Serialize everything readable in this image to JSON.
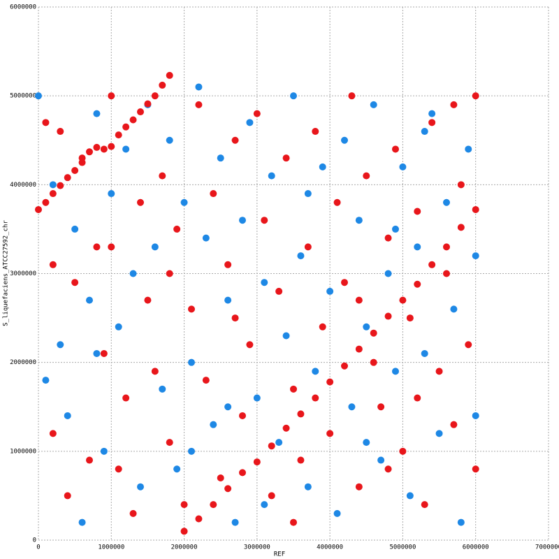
{
  "chart_data": {
    "type": "scatter",
    "xlabel": "REF",
    "ylabel": "S_liquefaciens_ATCC27592_chr",
    "xlim": [
      0,
      7000000
    ],
    "xticks": [
      0,
      1000000,
      2000000,
      3000000,
      4000000,
      5000000,
      6000000,
      7000000
    ],
    "ylim": [
      0,
      6000000
    ],
    "yticks": [
      0,
      1000000,
      2000000,
      3000000,
      4000000,
      5000000,
      6000000
    ],
    "grid": true,
    "series": [
      {
        "color": "#1e88e5",
        "x": [
          0,
          200000,
          300000,
          400000,
          500000,
          600000,
          700000,
          800000,
          900000,
          1000000,
          1100000,
          1200000,
          1300000,
          1400000,
          1500000,
          1600000,
          1700000,
          1800000,
          1900000,
          2000000,
          2100000,
          2200000,
          2300000,
          2400000,
          2500000,
          2600000,
          2700000,
          2800000,
          2900000,
          3000000,
          3100000,
          3200000,
          3300000,
          3400000,
          3500000,
          3600000,
          3700000,
          3800000,
          3900000,
          4000000,
          4100000,
          4200000,
          4300000,
          4400000,
          4500000,
          4600000,
          4700000,
          4800000,
          4900000,
          5000000,
          5100000,
          5200000,
          5300000,
          5400000,
          5500000,
          5600000,
          5700000,
          5800000,
          5900000,
          6000000,
          6000000,
          100000,
          2600000,
          3100000,
          3700000,
          4500000,
          5300000,
          2100000,
          800000,
          4900000
        ],
        "values": [
          5000000,
          4000000,
          2200000,
          1400000,
          3500000,
          200000,
          2700000,
          4800000,
          1000000,
          3900000,
          2400000,
          4400000,
          3000000,
          600000,
          4900000,
          3300000,
          1700000,
          4500000,
          800000,
          3800000,
          2000000,
          5100000,
          3400000,
          1300000,
          4300000,
          2700000,
          200000,
          3600000,
          4700000,
          1600000,
          2900000,
          4100000,
          1100000,
          2300000,
          5000000,
          3200000,
          600000,
          1900000,
          4200000,
          2800000,
          300000,
          4500000,
          1500000,
          3600000,
          2400000,
          4900000,
          900000,
          3000000,
          1900000,
          4200000,
          500000,
          3300000,
          2100000,
          4800000,
          1200000,
          3800000,
          2600000,
          200000,
          4400000,
          1400000,
          3200000,
          1800000,
          1500000,
          400000,
          3900000,
          1100000,
          4600000,
          1000000,
          2100000,
          3500000
        ]
      },
      {
        "color": "#e8161b",
        "x": [
          0,
          100000,
          200000,
          300000,
          400000,
          500000,
          600000,
          700000,
          800000,
          900000,
          1000000,
          1100000,
          1200000,
          1300000,
          1400000,
          1500000,
          1600000,
          1700000,
          1800000,
          2000000,
          2200000,
          2400000,
          2600000,
          2800000,
          3000000,
          3200000,
          3400000,
          3600000,
          3800000,
          4000000,
          4200000,
          4400000,
          4600000,
          4800000,
          5000000,
          5200000,
          5400000,
          5600000,
          5800000,
          6000000,
          100000,
          300000,
          500000,
          200000,
          400000,
          800000,
          900000,
          1200000,
          1400000,
          1100000,
          1500000,
          1700000,
          1800000,
          1900000,
          2000000,
          2100000,
          2200000,
          2300000,
          2400000,
          2500000,
          2600000,
          2700000,
          2800000,
          2900000,
          3000000,
          3100000,
          3200000,
          3300000,
          3400000,
          3500000,
          3600000,
          3700000,
          3800000,
          3900000,
          4000000,
          4100000,
          4200000,
          4300000,
          4400000,
          4500000,
          4600000,
          4700000,
          4800000,
          4900000,
          5000000,
          5100000,
          5200000,
          5300000,
          5400000,
          5500000,
          5600000,
          5700000,
          5800000,
          5900000,
          6000000,
          6000000,
          200000,
          600000,
          1000000,
          1300000,
          1600000,
          700000,
          4400000,
          5200000,
          5700000,
          3500000,
          2700000,
          1800000,
          4800000,
          1000000
        ],
        "values": [
          3720000,
          3800000,
          3900000,
          3990000,
          4080000,
          4160000,
          4250000,
          4370000,
          4420000,
          4400000,
          4430000,
          4560000,
          4650000,
          4730000,
          4820000,
          4910000,
          5000000,
          5120000,
          5230000,
          100000,
          240000,
          400000,
          580000,
          760000,
          880000,
          1060000,
          1260000,
          1420000,
          1600000,
          1780000,
          1960000,
          2150000,
          2330000,
          2520000,
          2700000,
          2880000,
          3100000,
          3300000,
          3520000,
          3720000,
          4700000,
          4600000,
          2900000,
          1200000,
          500000,
          3300000,
          2100000,
          1600000,
          3800000,
          800000,
          2700000,
          4100000,
          1100000,
          3500000,
          400000,
          2600000,
          4900000,
          1800000,
          3900000,
          700000,
          3100000,
          4500000,
          1400000,
          2200000,
          4800000,
          3600000,
          500000,
          2800000,
          4300000,
          1700000,
          900000,
          3300000,
          4600000,
          2400000,
          1200000,
          3800000,
          2900000,
          5000000,
          600000,
          4100000,
          2000000,
          1500000,
          3400000,
          4400000,
          1000000,
          2500000,
          3700000,
          400000,
          4700000,
          1900000,
          3000000,
          1300000,
          4000000,
          2200000,
          5000000,
          800000,
          3100000,
          4300000,
          5000000,
          300000,
          1900000,
          900000,
          2700000,
          1600000,
          4900000,
          200000,
          2500000,
          3000000,
          800000,
          3300000
        ]
      }
    ]
  }
}
